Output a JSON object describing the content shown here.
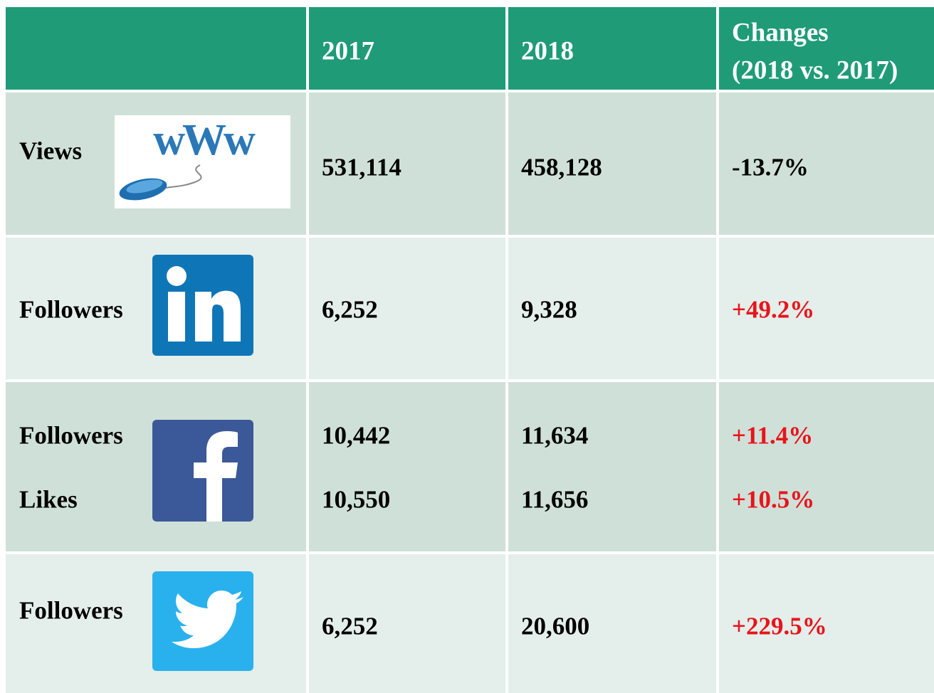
{
  "header": {
    "columns": [
      "2017",
      "2018"
    ],
    "changes": [
      "Changes",
      "(2018 vs. 2017)"
    ]
  },
  "table": {
    "rows": [
      [
        "Views",
        "531,114",
        "458,128",
        "-13.7%"
      ],
      [
        "Followers",
        "6,252",
        "9,328",
        "+49.2%"
      ],
      [
        "Followers",
        "10,442",
        "11,634",
        "+11.4%"
      ],
      [
        "Likes",
        "10,550",
        "11,656",
        "+10.5%"
      ],
      [
        "Followers",
        "6,252",
        "20,600",
        "+229.5%"
      ]
    ]
  }
}
